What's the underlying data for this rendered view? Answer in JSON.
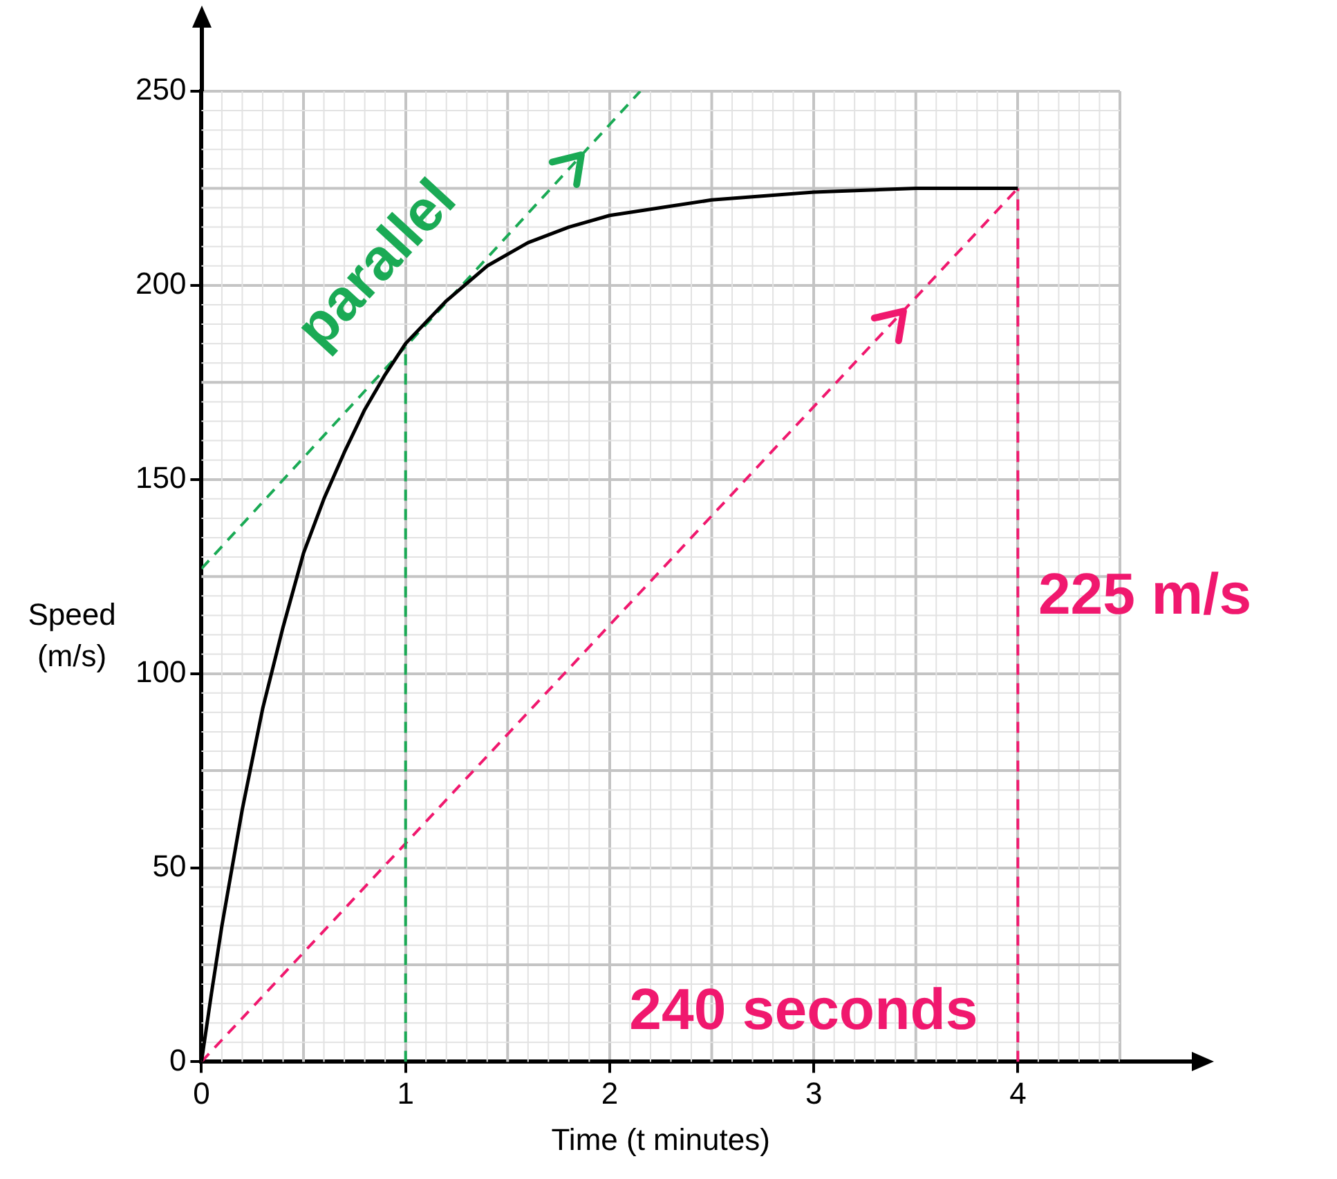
{
  "chart_data": {
    "type": "line",
    "xlabel": "Time (t minutes)",
    "ylabel": "Speed (m/s)",
    "xlim": [
      0,
      4.5
    ],
    "ylim": [
      0,
      250
    ],
    "xticks": [
      0,
      1,
      2,
      3,
      4
    ],
    "yticks": [
      0,
      50,
      100,
      150,
      200,
      250
    ],
    "grid": true,
    "legend": false,
    "marker": "none",
    "series": [
      {
        "type": "line",
        "color": "#000000",
        "line_style": "solid",
        "x": [
          0,
          0.05,
          0.1,
          0.2,
          0.3,
          0.4,
          0.5,
          0.6,
          0.7,
          0.8,
          0.9,
          1,
          1.2,
          1.4,
          1.6,
          1.8,
          2,
          2.25,
          2.5,
          3,
          3.5,
          4
        ],
        "values": [
          0,
          18,
          35,
          65,
          91,
          112,
          131,
          145,
          157,
          168,
          177,
          185,
          196,
          205,
          211,
          215,
          218,
          220,
          222,
          224,
          225,
          225
        ]
      },
      {
        "type": "line",
        "color": "#1aaa55",
        "line_style": "dashed",
        "x": [
          0,
          2.15
        ],
        "values": [
          127,
          250
        ]
      },
      {
        "type": "line",
        "color": "#1aaa55",
        "line_style": "dashed",
        "x": [
          1,
          1
        ],
        "values": [
          0,
          185
        ]
      },
      {
        "type": "line",
        "color": "#f0186e",
        "line_style": "dashed",
        "x": [
          0,
          4
        ],
        "values": [
          0,
          225
        ]
      },
      {
        "type": "line",
        "color": "#f0186e",
        "line_style": "dashed",
        "x": [
          4,
          4
        ],
        "values": [
          0,
          225
        ]
      }
    ],
    "annotations": [
      "parallel",
      "225 m/s",
      "240 seconds"
    ]
  }
}
